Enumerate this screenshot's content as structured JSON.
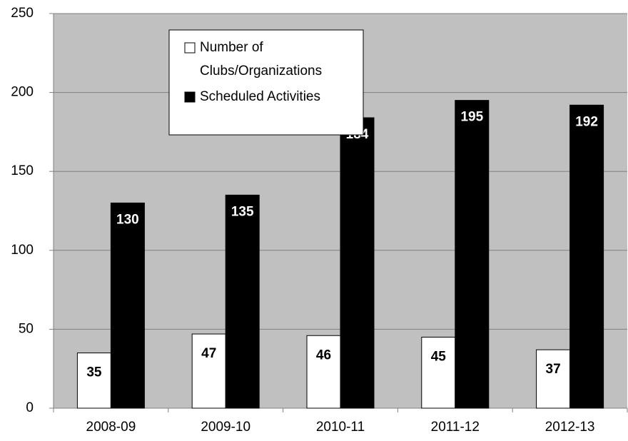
{
  "chart_data": {
    "type": "bar",
    "categories": [
      "2008-09",
      "2009-10",
      "2010-11",
      "2011-12",
      "2012-13"
    ],
    "series": [
      {
        "name": "Number of Clubs/Organizations",
        "color": "#ffffff",
        "values": [
          35,
          47,
          46,
          45,
          37
        ]
      },
      {
        "name": "Scheduled Activities",
        "color": "#000000",
        "values": [
          130,
          135,
          184,
          195,
          192
        ]
      }
    ],
    "ylim": [
      0,
      250
    ],
    "yticks": [
      0,
      50,
      100,
      150,
      200,
      250
    ],
    "grid": true,
    "legend": "top"
  }
}
